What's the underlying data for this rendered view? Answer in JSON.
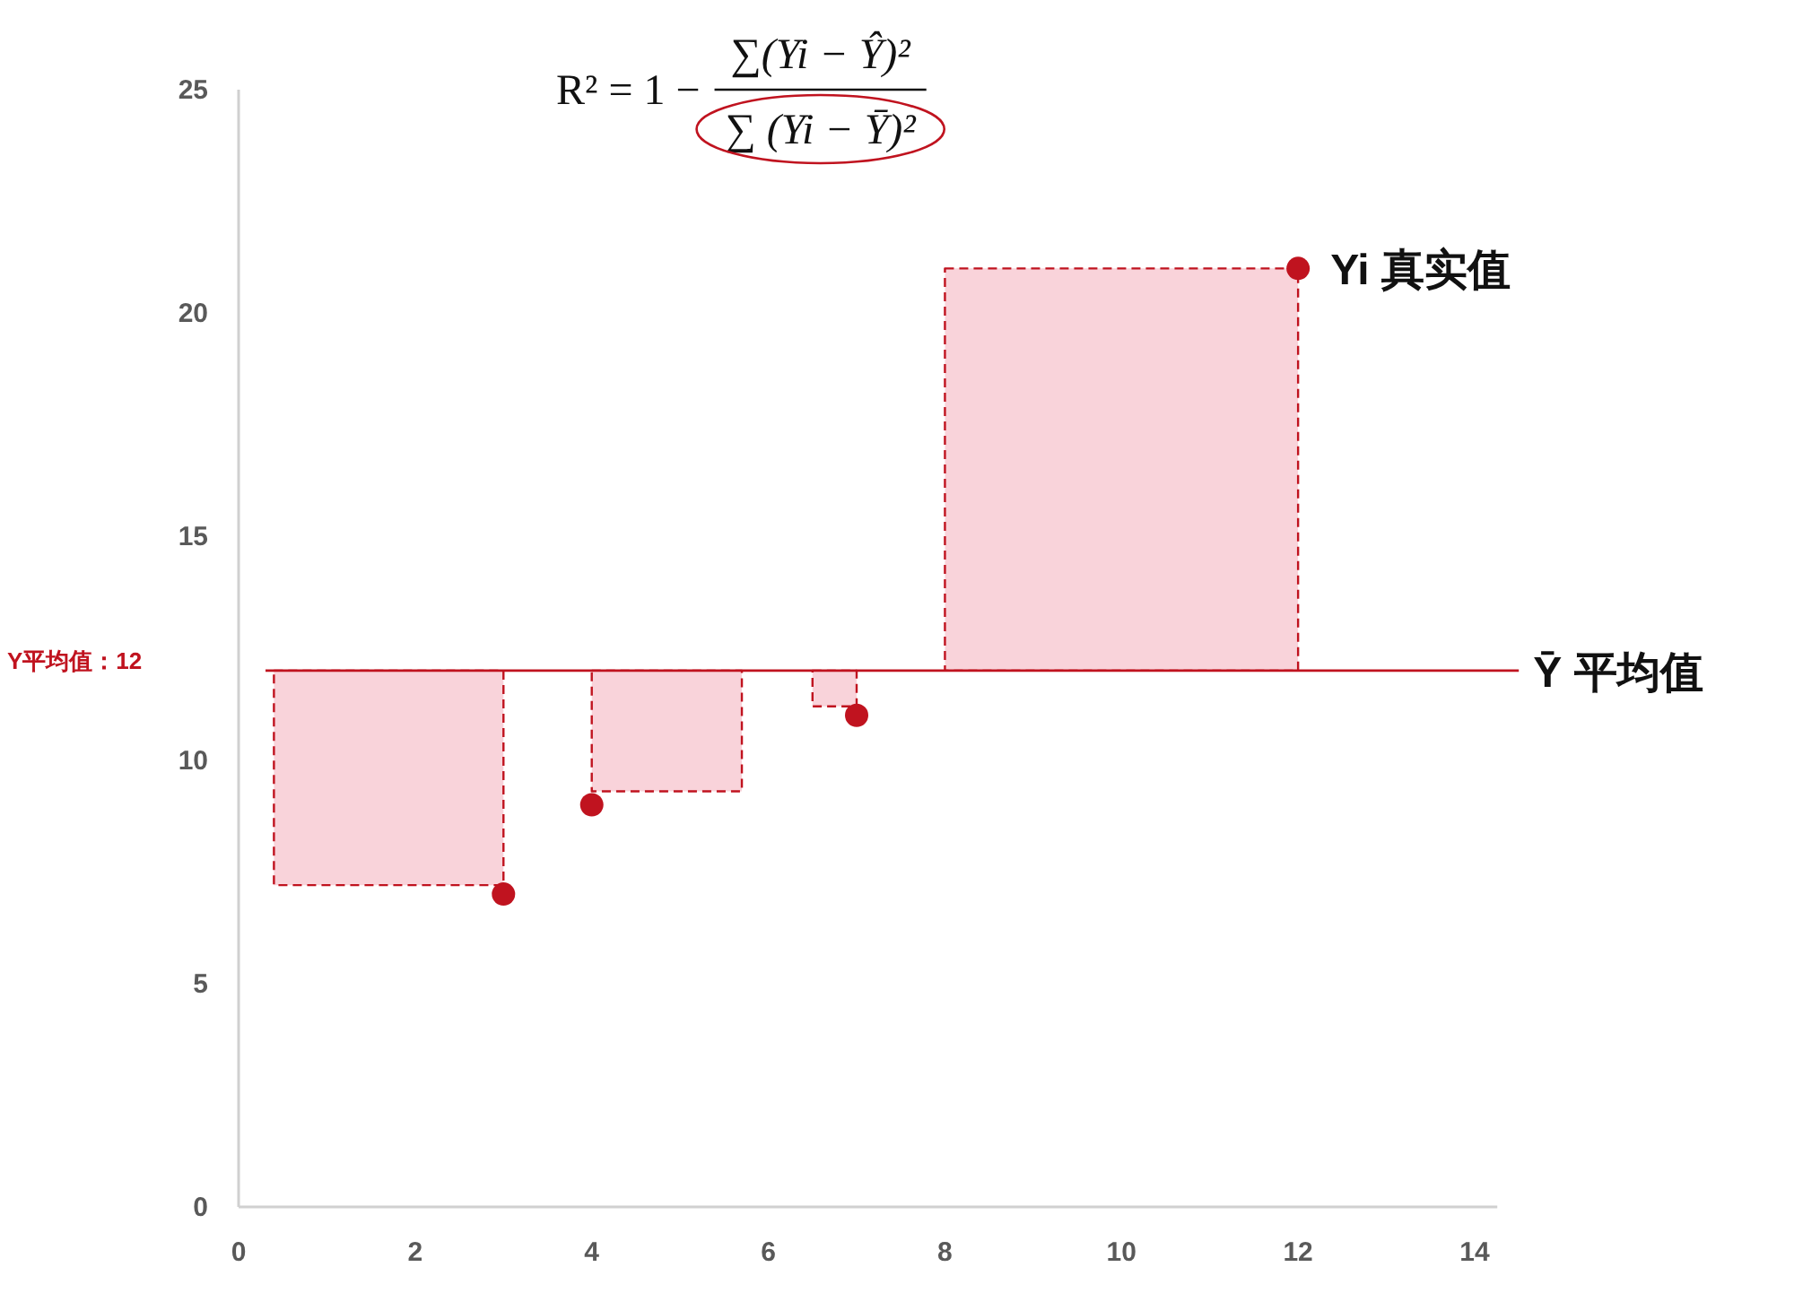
{
  "chart_data": {
    "type": "scatter",
    "xlim": [
      0,
      14.5
    ],
    "xticks": [
      0,
      2,
      4,
      6,
      8,
      10,
      12,
      14
    ],
    "ylim": [
      0,
      25
    ],
    "yticks": [
      0,
      5,
      10,
      15,
      20,
      25
    ],
    "grid": false,
    "series": [
      {
        "type": "area",
        "color": "#f9d3da",
        "line_style": "dashed",
        "x": [
          0.4,
          3,
          3,
          0.4,
          0.4
        ],
        "values": [
          12,
          12,
          7.2,
          7.2,
          12
        ]
      },
      {
        "type": "area",
        "color": "#f9d3da",
        "line_style": "dashed",
        "x": [
          4,
          5.7,
          5.7,
          4,
          4
        ],
        "values": [
          12,
          12,
          9.3,
          9.3,
          12
        ]
      },
      {
        "type": "area",
        "color": "#f9d3da",
        "line_style": "dashed",
        "x": [
          6.5,
          7,
          7,
          6.5,
          6.5
        ],
        "values": [
          12,
          12,
          11.2,
          11.2,
          12
        ]
      },
      {
        "type": "area",
        "color": "#f9d3da",
        "line_style": "dashed",
        "x": [
          8,
          12,
          12,
          8,
          8
        ],
        "values": [
          21,
          21,
          12,
          12,
          21
        ]
      },
      {
        "type": "scatter",
        "color": "#c0131f",
        "marker": "circle",
        "x": [
          3,
          4,
          7,
          12
        ],
        "values": [
          7,
          9,
          11,
          21
        ]
      }
    ],
    "ref_lines": [
      {
        "axis": "y",
        "value": 12,
        "label": "Y平均值：12",
        "color": "#c0131f",
        "line_style": "solid"
      }
    ],
    "annotations": [
      "R² = 1 −",
      "∑(Yi − Ŷ)²",
      "∑ (Yi − Ȳ)²",
      {
        "text": "Yi 真实值",
        "x": 12,
        "y": 21
      },
      "Ȳ 平均值"
    ]
  }
}
